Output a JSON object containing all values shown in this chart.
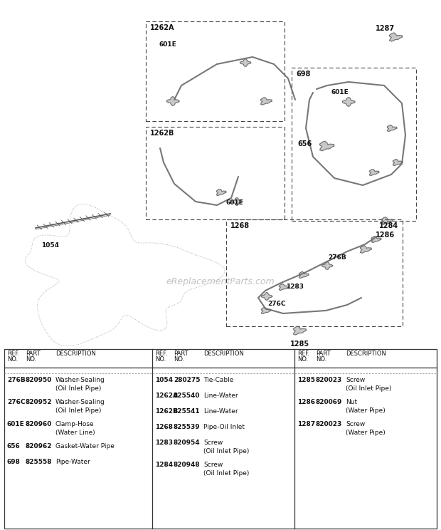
{
  "bg_color": "#ffffff",
  "watermark": "eReplacementParts.com",
  "table_col1": [
    {
      "ref": "276B",
      "part": "820950",
      "desc": "Washer-Sealing\n(Oil Inlet Pipe)"
    },
    {
      "ref": "276C",
      "part": "820952",
      "desc": "Washer-Sealing\n(Oil Inlet Pipe)"
    },
    {
      "ref": "601E",
      "part": "820960",
      "desc": "Clamp-Hose\n(Water Line)"
    },
    {
      "ref": "656",
      "part": "820962",
      "desc": "Gasket-Water Pipe"
    },
    {
      "ref": "698",
      "part": "825558",
      "desc": "Pipe-Water"
    }
  ],
  "table_col2": [
    {
      "ref": "1054",
      "part": "280275",
      "desc": "Tie-Cable"
    },
    {
      "ref": "1262A",
      "part": "825540",
      "desc": "Line-Water"
    },
    {
      "ref": "1262B",
      "part": "825541",
      "desc": "Line-Water"
    },
    {
      "ref": "1268",
      "part": "825539",
      "desc": "Pipe-Oil Inlet"
    },
    {
      "ref": "1283",
      "part": "820954",
      "desc": "Screw\n(Oil Inlet Pipe)"
    },
    {
      "ref": "1284",
      "part": "820948",
      "desc": "Screw\n(Oil Inlet Pipe)"
    }
  ],
  "table_col3": [
    {
      "ref": "1285",
      "part": "820023",
      "desc": "Screw\n(Oil Inlet Pipe)"
    },
    {
      "ref": "1286",
      "part": "820069",
      "desc": "Nut\n(Water Pipe)"
    },
    {
      "ref": "1287",
      "part": "820023",
      "desc": "Screw\n(Water Pipe)"
    }
  ]
}
